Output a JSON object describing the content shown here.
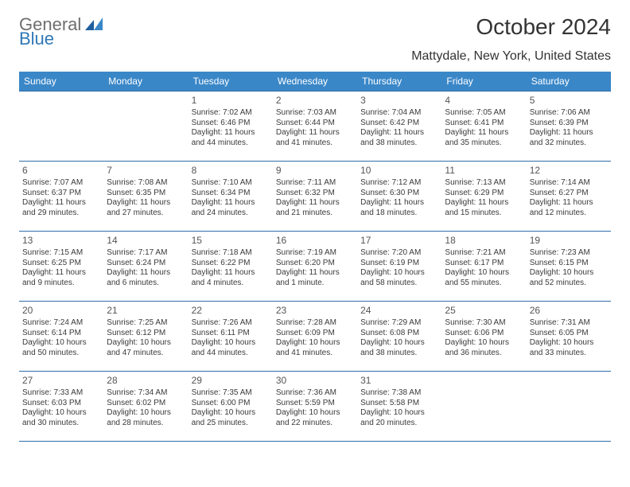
{
  "logo": {
    "text_gray": "General",
    "text_blue": "Blue"
  },
  "title": "October 2024",
  "subtitle": "Mattydale, New York, United States",
  "colors": {
    "header_bg": "#3a87c8",
    "header_text": "#ffffff",
    "row_divider": "#2f6ea8",
    "body_text": "#3a3a3a",
    "logo_gray": "#6e6e6e",
    "logo_blue": "#2f78b7"
  },
  "day_headers": [
    "Sunday",
    "Monday",
    "Tuesday",
    "Wednesday",
    "Thursday",
    "Friday",
    "Saturday"
  ],
  "weeks": [
    [
      null,
      null,
      {
        "n": "1",
        "sr": "7:02 AM",
        "ss": "6:46 PM",
        "dl": "11 hours and 44 minutes."
      },
      {
        "n": "2",
        "sr": "7:03 AM",
        "ss": "6:44 PM",
        "dl": "11 hours and 41 minutes."
      },
      {
        "n": "3",
        "sr": "7:04 AM",
        "ss": "6:42 PM",
        "dl": "11 hours and 38 minutes."
      },
      {
        "n": "4",
        "sr": "7:05 AM",
        "ss": "6:41 PM",
        "dl": "11 hours and 35 minutes."
      },
      {
        "n": "5",
        "sr": "7:06 AM",
        "ss": "6:39 PM",
        "dl": "11 hours and 32 minutes."
      }
    ],
    [
      {
        "n": "6",
        "sr": "7:07 AM",
        "ss": "6:37 PM",
        "dl": "11 hours and 29 minutes."
      },
      {
        "n": "7",
        "sr": "7:08 AM",
        "ss": "6:35 PM",
        "dl": "11 hours and 27 minutes."
      },
      {
        "n": "8",
        "sr": "7:10 AM",
        "ss": "6:34 PM",
        "dl": "11 hours and 24 minutes."
      },
      {
        "n": "9",
        "sr": "7:11 AM",
        "ss": "6:32 PM",
        "dl": "11 hours and 21 minutes."
      },
      {
        "n": "10",
        "sr": "7:12 AM",
        "ss": "6:30 PM",
        "dl": "11 hours and 18 minutes."
      },
      {
        "n": "11",
        "sr": "7:13 AM",
        "ss": "6:29 PM",
        "dl": "11 hours and 15 minutes."
      },
      {
        "n": "12",
        "sr": "7:14 AM",
        "ss": "6:27 PM",
        "dl": "11 hours and 12 minutes."
      }
    ],
    [
      {
        "n": "13",
        "sr": "7:15 AM",
        "ss": "6:25 PM",
        "dl": "11 hours and 9 minutes."
      },
      {
        "n": "14",
        "sr": "7:17 AM",
        "ss": "6:24 PM",
        "dl": "11 hours and 6 minutes."
      },
      {
        "n": "15",
        "sr": "7:18 AM",
        "ss": "6:22 PM",
        "dl": "11 hours and 4 minutes."
      },
      {
        "n": "16",
        "sr": "7:19 AM",
        "ss": "6:20 PM",
        "dl": "11 hours and 1 minute."
      },
      {
        "n": "17",
        "sr": "7:20 AM",
        "ss": "6:19 PM",
        "dl": "10 hours and 58 minutes."
      },
      {
        "n": "18",
        "sr": "7:21 AM",
        "ss": "6:17 PM",
        "dl": "10 hours and 55 minutes."
      },
      {
        "n": "19",
        "sr": "7:23 AM",
        "ss": "6:15 PM",
        "dl": "10 hours and 52 minutes."
      }
    ],
    [
      {
        "n": "20",
        "sr": "7:24 AM",
        "ss": "6:14 PM",
        "dl": "10 hours and 50 minutes."
      },
      {
        "n": "21",
        "sr": "7:25 AM",
        "ss": "6:12 PM",
        "dl": "10 hours and 47 minutes."
      },
      {
        "n": "22",
        "sr": "7:26 AM",
        "ss": "6:11 PM",
        "dl": "10 hours and 44 minutes."
      },
      {
        "n": "23",
        "sr": "7:28 AM",
        "ss": "6:09 PM",
        "dl": "10 hours and 41 minutes."
      },
      {
        "n": "24",
        "sr": "7:29 AM",
        "ss": "6:08 PM",
        "dl": "10 hours and 38 minutes."
      },
      {
        "n": "25",
        "sr": "7:30 AM",
        "ss": "6:06 PM",
        "dl": "10 hours and 36 minutes."
      },
      {
        "n": "26",
        "sr": "7:31 AM",
        "ss": "6:05 PM",
        "dl": "10 hours and 33 minutes."
      }
    ],
    [
      {
        "n": "27",
        "sr": "7:33 AM",
        "ss": "6:03 PM",
        "dl": "10 hours and 30 minutes."
      },
      {
        "n": "28",
        "sr": "7:34 AM",
        "ss": "6:02 PM",
        "dl": "10 hours and 28 minutes."
      },
      {
        "n": "29",
        "sr": "7:35 AM",
        "ss": "6:00 PM",
        "dl": "10 hours and 25 minutes."
      },
      {
        "n": "30",
        "sr": "7:36 AM",
        "ss": "5:59 PM",
        "dl": "10 hours and 22 minutes."
      },
      {
        "n": "31",
        "sr": "7:38 AM",
        "ss": "5:58 PM",
        "dl": "10 hours and 20 minutes."
      },
      null,
      null
    ]
  ],
  "labels": {
    "sunrise": "Sunrise: ",
    "sunset": "Sunset: ",
    "daylight": "Daylight: "
  }
}
